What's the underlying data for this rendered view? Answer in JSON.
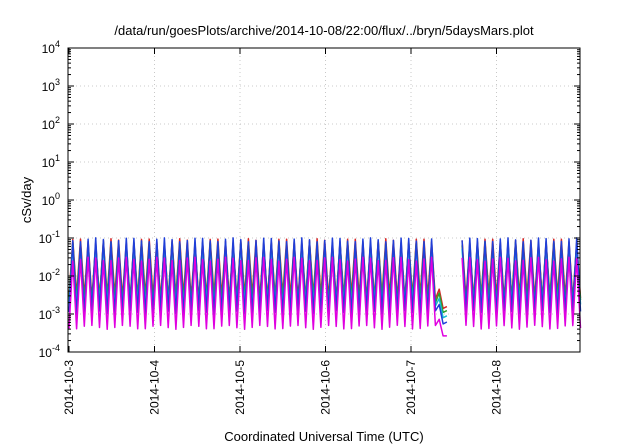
{
  "chart_data": {
    "type": "line",
    "title": "/data/run/goesPlots/archive/2014-10-08/22:00/flux/../bryn/5daysMars.plot",
    "xlabel": "Coordinated Universal Time (UTC)",
    "ylabel": "cSv/day",
    "y_scale": "log",
    "ylim": [
      0.0001,
      10000
    ],
    "xlim": [
      "2014-10-03",
      "2014-10-09"
    ],
    "grid": true,
    "grid_style": "dotted",
    "x_tick_labels": [
      "2014-10-3",
      "2014-10-4",
      "2014-10-5",
      "2014-10-6",
      "2014-10-7",
      "2014-10-8"
    ],
    "y_tick_labels": [
      {
        "base": "10",
        "exp": "-4"
      },
      {
        "base": "10",
        "exp": "-3"
      },
      {
        "base": "10",
        "exp": "-2"
      },
      {
        "base": "10",
        "exp": "-1"
      },
      {
        "base": "10",
        "exp": "0"
      },
      {
        "base": "10",
        "exp": "1"
      },
      {
        "base": "10",
        "exp": "2"
      },
      {
        "base": "10",
        "exp": "3"
      },
      {
        "base": "10",
        "exp": "4"
      }
    ],
    "oscillation": {
      "cycles_per_day": 11.2,
      "data_gap": [
        "2014-10-07T11:00",
        "2014-10-07T14:00"
      ],
      "dip_before_gap": {
        "time_start": "2014-10-07T07:00",
        "min_value": 0.0001
      }
    },
    "series": [
      {
        "color": "#d62728",
        "peak": 0.085,
        "trough": 0.0028
      },
      {
        "color": "#2ca02c",
        "peak": 0.07,
        "trough": 0.0022
      },
      {
        "color": "#17becf",
        "peak": 0.058,
        "trough": 0.0016
      },
      {
        "color": "#1f3fd8",
        "peak": 0.09,
        "trough": 0.0011
      },
      {
        "color": "#e000e0",
        "peak": 0.028,
        "trough": 0.00045
      }
    ]
  }
}
